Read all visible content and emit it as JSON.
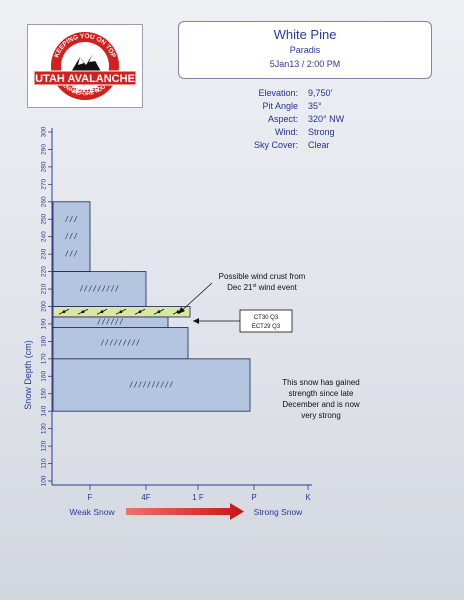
{
  "logo": {
    "arc_text": "KEEPING YOU ON TOP",
    "line1": "UTAH AVALANCHE",
    "line2": "CENTER",
    "tagline": "KNOW BEFORE YOU GO"
  },
  "header": {
    "title": "White Pine",
    "subtitle": "Paradis",
    "date": "5Jan13 / 2:00 PM"
  },
  "site_info": [
    {
      "label": "Elevation:",
      "value": "9,750'"
    },
    {
      "label": "Pit Angle",
      "value": "35°"
    },
    {
      "label": "Aspect:",
      "value": "320° NW"
    },
    {
      "label": "Wind:",
      "value": "Strong"
    },
    {
      "label": "Sky Cover:",
      "value": "Clear"
    }
  ],
  "chart_data": {
    "type": "snow_profile",
    "ylabel": "Snow Depth (cm)",
    "ylim": [
      100,
      300
    ],
    "yticks": [
      100,
      110,
      120,
      130,
      140,
      150,
      160,
      170,
      180,
      190,
      200,
      210,
      220,
      230,
      240,
      250,
      260,
      270,
      280,
      290,
      300
    ],
    "xticks": [
      "F",
      "4F",
      "1 F",
      "P",
      "K"
    ],
    "x_left_label": "Weak Snow",
    "x_right_label": "Strong Snow",
    "layers": [
      {
        "top": 260,
        "bottom": 220,
        "hardness": "F",
        "symbol": "/ / /",
        "rows": 3
      },
      {
        "top": 220,
        "bottom": 200,
        "hardness": "4F",
        "symbol": "/ / / / / / / / /",
        "rows": 1
      },
      {
        "top": 200,
        "bottom": 194,
        "hardness": "1F-",
        "symbol": "wind crust",
        "rows": 1,
        "highlight": true
      },
      {
        "top": 194,
        "bottom": 188,
        "hardness": "4F+",
        "symbol": "/ / / / / /",
        "rows": 1
      },
      {
        "top": 188,
        "bottom": 170,
        "hardness": "1F",
        "symbol": "/ / / / / / / / /",
        "rows": 1
      },
      {
        "top": 170,
        "bottom": 140,
        "hardness": "P+",
        "symbol": "/ / / / / / / / / /",
        "rows": 1
      }
    ],
    "annotations": [
      {
        "text_lines": [
          "Possible wind crust from",
          "Dec 21",
          "st",
          " wind event"
        ],
        "target_depth": 197
      },
      {
        "text_lines": [
          "This snow has gained",
          "strength since late",
          "December and is now",
          "very strong"
        ],
        "target_depth": 155
      }
    ],
    "tests": [
      "CT30 Q3",
      "ECT29 Q3"
    ]
  },
  "colors": {
    "layer_fill": "#b3c5df",
    "layer_stroke": "#1c2450",
    "crust_fill": "#d8e6a6",
    "arrow": "#c81414",
    "axis": "#2a3a9a"
  }
}
